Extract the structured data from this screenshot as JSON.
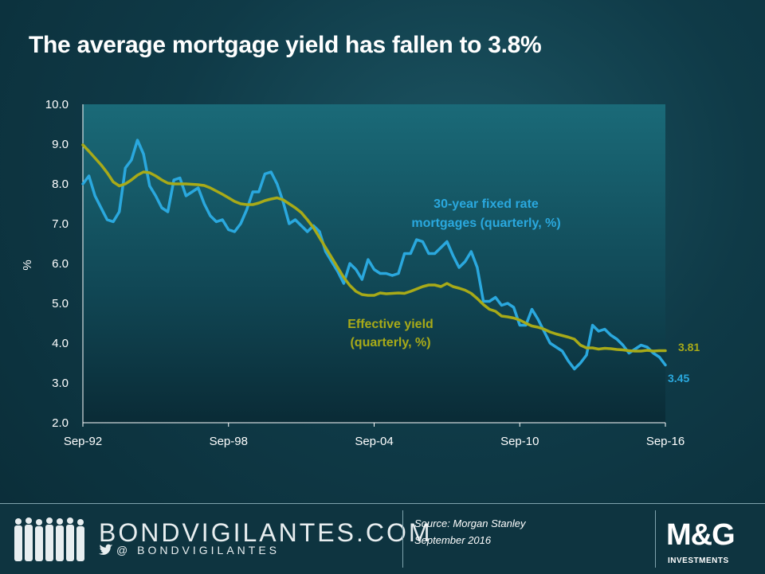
{
  "title": "The average mortgage yield has fallen to 3.8%",
  "chart_data": {
    "type": "line",
    "ylabel": "%",
    "ylim": [
      2.0,
      10.0
    ],
    "yticks": [
      "10.0",
      "9.0",
      "8.0",
      "7.0",
      "6.0",
      "5.0",
      "4.0",
      "3.0",
      "2.0"
    ],
    "xticks": [
      "Sep-92",
      "Sep-98",
      "Sep-04",
      "Sep-10",
      "Sep-16"
    ],
    "series": [
      {
        "name": "30-year fixed rate mortgages (quarterly, %)",
        "color": "#2aa8de",
        "end_label": "3.45",
        "x": [
          "1992-09",
          "1992-12",
          "1993-03",
          "1993-06",
          "1993-09",
          "1993-12",
          "1994-03",
          "1994-06",
          "1994-09",
          "1994-12",
          "1995-03",
          "1995-06",
          "1995-09",
          "1995-12",
          "1996-03",
          "1996-06",
          "1996-09",
          "1996-12",
          "1997-03",
          "1997-06",
          "1997-09",
          "1997-12",
          "1998-03",
          "1998-06",
          "1998-09",
          "1998-12",
          "1999-03",
          "1999-06",
          "1999-09",
          "1999-12",
          "2000-03",
          "2000-06",
          "2000-09",
          "2000-12",
          "2001-03",
          "2001-06",
          "2001-09",
          "2001-12",
          "2002-03",
          "2002-06",
          "2002-09",
          "2002-12",
          "2003-03",
          "2003-06",
          "2003-09",
          "2003-12",
          "2004-03",
          "2004-06",
          "2004-09",
          "2004-12",
          "2005-03",
          "2005-06",
          "2005-09",
          "2005-12",
          "2006-03",
          "2006-06",
          "2006-09",
          "2006-12",
          "2007-03",
          "2007-06",
          "2007-09",
          "2007-12",
          "2008-03",
          "2008-06",
          "2008-09",
          "2008-12",
          "2009-03",
          "2009-06",
          "2009-09",
          "2009-12",
          "2010-03",
          "2010-06",
          "2010-09",
          "2010-12",
          "2011-03",
          "2011-06",
          "2011-09",
          "2011-12",
          "2012-03",
          "2012-06",
          "2012-09",
          "2012-12",
          "2013-03",
          "2013-06",
          "2013-09",
          "2013-12",
          "2014-03",
          "2014-06",
          "2014-09",
          "2014-12",
          "2015-03",
          "2015-06",
          "2015-09",
          "2015-12",
          "2016-03",
          "2016-06",
          "2016-09"
        ],
        "values": [
          8.0,
          8.2,
          7.7,
          7.4,
          7.1,
          7.05,
          7.3,
          8.4,
          8.6,
          9.1,
          8.75,
          7.95,
          7.7,
          7.4,
          7.3,
          8.1,
          8.15,
          7.7,
          7.8,
          7.9,
          7.5,
          7.2,
          7.05,
          7.1,
          6.85,
          6.8,
          7.0,
          7.35,
          7.8,
          7.8,
          8.25,
          8.3,
          8.0,
          7.55,
          7.0,
          7.1,
          6.95,
          6.8,
          6.95,
          6.8,
          6.3,
          6.05,
          5.8,
          5.5,
          6.0,
          5.85,
          5.6,
          6.1,
          5.85,
          5.75,
          5.75,
          5.7,
          5.75,
          6.25,
          6.25,
          6.6,
          6.55,
          6.25,
          6.25,
          6.4,
          6.55,
          6.2,
          5.9,
          6.05,
          6.3,
          5.9,
          5.05,
          5.05,
          5.15,
          4.95,
          5.0,
          4.9,
          4.45,
          4.45,
          4.85,
          4.6,
          4.3,
          4.0,
          3.9,
          3.8,
          3.55,
          3.35,
          3.5,
          3.7,
          4.45,
          4.3,
          4.35,
          4.2,
          4.1,
          3.95,
          3.75,
          3.85,
          3.95,
          3.9,
          3.75,
          3.65,
          3.45
        ]
      },
      {
        "name": "Effective yield (quarterly, %)",
        "color": "#a8aa18",
        "end_label": "3.81",
        "x": [
          "1992-09",
          "1992-12",
          "1993-03",
          "1993-06",
          "1993-09",
          "1993-12",
          "1994-03",
          "1994-06",
          "1994-09",
          "1994-12",
          "1995-03",
          "1995-06",
          "1995-09",
          "1995-12",
          "1996-03",
          "1996-06",
          "1996-09",
          "1996-12",
          "1997-03",
          "1997-06",
          "1997-09",
          "1997-12",
          "1998-03",
          "1998-06",
          "1998-09",
          "1998-12",
          "1999-03",
          "1999-06",
          "1999-09",
          "1999-12",
          "2000-03",
          "2000-06",
          "2000-09",
          "2000-12",
          "2001-03",
          "2001-06",
          "2001-09",
          "2001-12",
          "2002-03",
          "2002-06",
          "2002-09",
          "2002-12",
          "2003-03",
          "2003-06",
          "2003-09",
          "2003-12",
          "2004-03",
          "2004-06",
          "2004-09",
          "2004-12",
          "2005-03",
          "2005-06",
          "2005-09",
          "2005-12",
          "2006-03",
          "2006-06",
          "2006-09",
          "2006-12",
          "2007-03",
          "2007-06",
          "2007-09",
          "2007-12",
          "2008-03",
          "2008-06",
          "2008-09",
          "2008-12",
          "2009-03",
          "2009-06",
          "2009-09",
          "2009-12",
          "2010-03",
          "2010-06",
          "2010-09",
          "2010-12",
          "2011-03",
          "2011-06",
          "2011-09",
          "2011-12",
          "2012-03",
          "2012-06",
          "2012-09",
          "2012-12",
          "2013-03",
          "2013-06",
          "2013-09",
          "2013-12",
          "2014-03",
          "2014-06",
          "2014-09",
          "2014-12",
          "2015-03",
          "2015-06",
          "2015-09",
          "2015-12",
          "2016-03",
          "2016-06",
          "2016-09"
        ],
        "values": [
          8.98,
          8.82,
          8.65,
          8.48,
          8.28,
          8.05,
          7.95,
          8.0,
          8.1,
          8.22,
          8.3,
          8.28,
          8.2,
          8.1,
          8.02,
          8.0,
          8.0,
          8.0,
          7.99,
          7.98,
          7.96,
          7.9,
          7.82,
          7.74,
          7.65,
          7.56,
          7.5,
          7.48,
          7.48,
          7.52,
          7.58,
          7.62,
          7.65,
          7.6,
          7.5,
          7.4,
          7.28,
          7.1,
          6.9,
          6.65,
          6.4,
          6.15,
          5.9,
          5.65,
          5.45,
          5.3,
          5.22,
          5.2,
          5.2,
          5.26,
          5.24,
          5.25,
          5.26,
          5.25,
          5.3,
          5.36,
          5.42,
          5.46,
          5.46,
          5.42,
          5.5,
          5.42,
          5.38,
          5.33,
          5.25,
          5.12,
          4.97,
          4.85,
          4.8,
          4.68,
          4.66,
          4.63,
          4.58,
          4.5,
          4.43,
          4.4,
          4.35,
          4.28,
          4.23,
          4.19,
          4.15,
          4.1,
          3.95,
          3.88,
          3.88,
          3.85,
          3.87,
          3.86,
          3.84,
          3.83,
          3.81,
          3.8,
          3.8,
          3.82,
          3.8,
          3.81,
          3.81
        ]
      }
    ],
    "annotations": {
      "blue_label_line1": "30-year fixed rate",
      "blue_label_line2": "mortgages (quarterly, %)",
      "green_label_line1": "Effective yield",
      "green_label_line2": "(quarterly, %)"
    }
  },
  "footer": {
    "brand": "BONDVIGILANTES.COM",
    "handle": "@ BONDVIGILANTES",
    "source_line1": "Source: Morgan Stanley",
    "source_line2": "September 2016",
    "logo_text": "M&G",
    "logo_sub": "INVESTMENTS"
  }
}
